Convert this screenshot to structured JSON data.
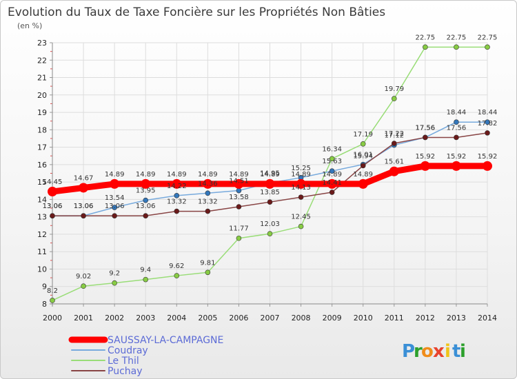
{
  "chart_data": {
    "type": "line",
    "title": "Evolution du Taux de Taxe Foncière sur les Propriétés Non Bâties",
    "subtitle": "(en %)",
    "xlabel": "",
    "ylabel": "",
    "ylim": [
      8,
      23
    ],
    "yticks": [
      "8",
      "9",
      "10",
      "11",
      "12",
      "13",
      "14",
      "15",
      "16",
      "17",
      "18",
      "19",
      "20",
      "21",
      "22",
      "23"
    ],
    "categories": [
      "2000",
      "2001",
      "2002",
      "2003",
      "2004",
      "2005",
      "2006",
      "2007",
      "2008",
      "2009",
      "2010",
      "2011",
      "2012",
      "2013",
      "2014"
    ],
    "grid": true,
    "legend_position": "bottom-left",
    "series": [
      {
        "name": "Le Thil",
        "color": "#99dd77",
        "marker": "#88cc44",
        "values": [
          8.2,
          9.02,
          9.2,
          9.4,
          9.62,
          9.81,
          11.77,
          12.03,
          12.45,
          16.34,
          17.19,
          19.79,
          22.75,
          22.75,
          22.75
        ],
        "labels": [
          "8.2",
          "9.02",
          "9.2",
          "9.4",
          "9.62",
          "9.81",
          "11.77",
          "12.03",
          "12.45",
          "16.34",
          "17.19",
          "19.79",
          "22.75",
          "22.75",
          "22.75"
        ]
      },
      {
        "name": "Coudray",
        "color": "#77aadd",
        "marker": "#3377bb",
        "values": [
          13.06,
          13.06,
          13.54,
          13.95,
          14.22,
          14.36,
          14.51,
          14.95,
          15.25,
          15.63,
          16.01,
          17.12,
          17.56,
          18.44,
          18.44
        ],
        "labels": [
          "13.06",
          "13.06",
          "13.54",
          "13.95",
          "14.22",
          "14.36",
          "14.51",
          "14.95",
          "15.25",
          "15.63",
          "16.01",
          "17.12",
          "17.56",
          "18.44",
          "18.44"
        ]
      },
      {
        "name": "Puchay",
        "color": "#884444",
        "marker": "#6b1a1a",
        "values": [
          13.06,
          13.06,
          13.06,
          13.06,
          13.32,
          13.32,
          13.58,
          13.85,
          14.13,
          14.41,
          15.94,
          17.22,
          17.56,
          17.56,
          17.82
        ],
        "labels": [
          "13.06",
          "13.06",
          "13.06",
          "13.06",
          "13.32",
          "13.32",
          "13.58",
          "13.85",
          "14.13",
          "14.41",
          "15.94",
          "17.22",
          "17.56",
          "17.56",
          "17.82"
        ]
      },
      {
        "name": "SAUSSAY-LA-CAMPAGNE",
        "color": "#ff0000",
        "marker": "#ff0000",
        "values": [
          14.45,
          14.67,
          14.89,
          14.89,
          14.89,
          14.89,
          14.89,
          14.89,
          14.89,
          14.89,
          14.89,
          15.61,
          15.92,
          15.92,
          15.92
        ],
        "labels": [
          "14.45",
          "14.67",
          "14.89",
          "14.89",
          "14.89",
          "14.89",
          "14.89",
          "14.89",
          "14.89",
          "14.89",
          "14.89",
          "15.61",
          "15.92",
          "15.92",
          "15.92"
        ]
      }
    ],
    "legend": [
      "SAUSSAY-LA-CAMPAGNE",
      "Coudray",
      "Le Thil",
      "Puchay"
    ]
  },
  "logo": {
    "text": "Proxiti",
    "letters": [
      "P",
      "r",
      "o",
      "x",
      "i",
      "t",
      "i"
    ],
    "colors": [
      "#3a8fd6",
      "#2ca02c",
      "#f08c1a",
      "#e8432e",
      "#f0c419",
      "#3a8fd6",
      "#2ca02c"
    ]
  }
}
